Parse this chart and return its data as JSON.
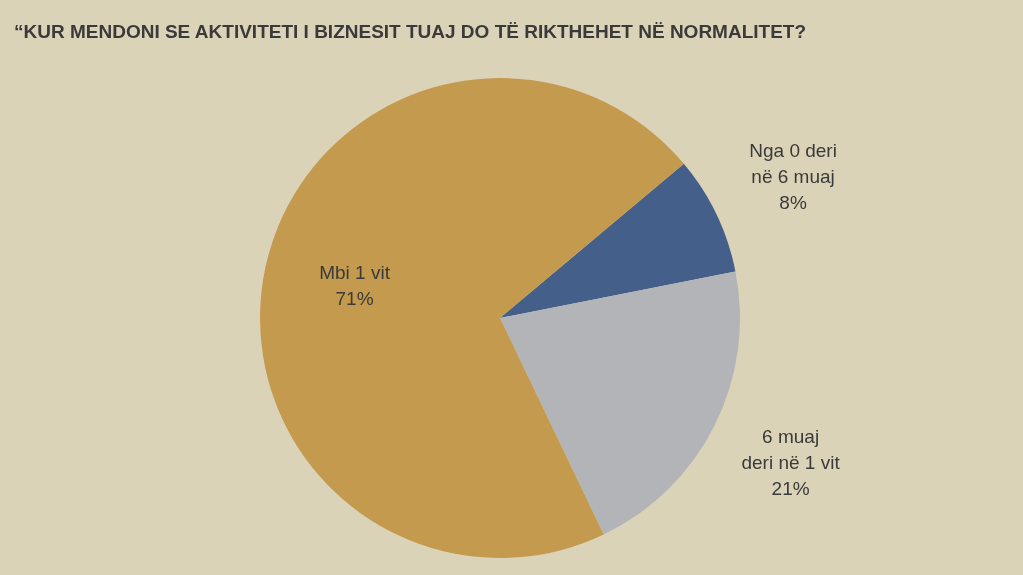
{
  "chart_data": {
    "type": "pie",
    "title": "“KUR MENDONI SE AKTIVITETI I BIZNESIT TUAJ DO TË RIKTHEHET NË NORMALITET?",
    "categories": [
      "Nga 0 deri\nnë 6 muaj",
      "6 muaj\nderi në 1 vit",
      "Mbi 1 vit"
    ],
    "values": [
      8,
      21,
      71
    ],
    "colors": [
      "#435f8a",
      "#b3b4b8",
      "#c49a4e"
    ],
    "value_labels": [
      "8%",
      "21%",
      "71%"
    ]
  }
}
